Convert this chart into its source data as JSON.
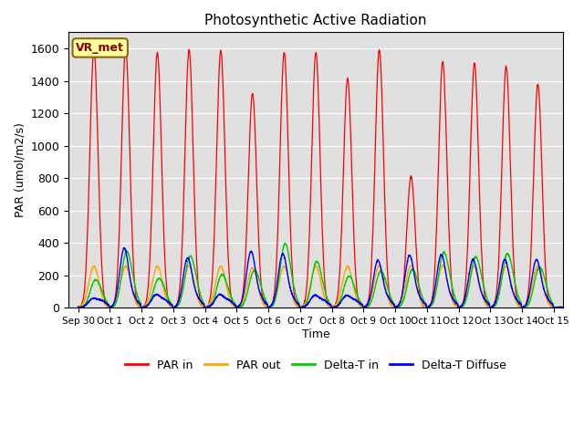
{
  "title": "Photosynthetic Active Radiation",
  "ylabel": "PAR (umol/m2/s)",
  "xlabel": "Time",
  "watermark": "VR_met",
  "legend_labels": [
    "PAR in",
    "PAR out",
    "Delta-T in",
    "Delta-T Diffuse"
  ],
  "legend_colors": [
    "#ff0000",
    "#ffa500",
    "#00cc00",
    "#0000ff"
  ],
  "xlim_start": -0.3,
  "xlim_end": 15.3,
  "ylim": [
    0,
    1700
  ],
  "yticks": [
    0,
    200,
    400,
    600,
    800,
    1000,
    1200,
    1400,
    1600
  ],
  "xtick_labels": [
    "Sep 30",
    "Oct 1",
    "Oct 2",
    "Oct 3",
    "Oct 4",
    "Oct 5",
    "Oct 6",
    "Oct 7",
    "Oct 8",
    "Oct 9",
    "Oct 10",
    "Oct 11",
    "Oct 12",
    "Oct 13",
    "Oct 14",
    "Oct 15"
  ],
  "background_color": "#e0e0e0",
  "par_in_peaks": [
    1590,
    1600,
    1575,
    1590,
    1585,
    1320,
    1575,
    1575,
    1415,
    1590,
    810,
    1520,
    1510,
    1490,
    1380,
    0
  ],
  "par_out_peaks": [
    255,
    255,
    255,
    260,
    255,
    245,
    255,
    255,
    255,
    260,
    260,
    260,
    255,
    255,
    255,
    0
  ],
  "delta_t_in_peaks": [
    130,
    290,
    140,
    260,
    165,
    165,
    340,
    250,
    155,
    175,
    185,
    285,
    255,
    270,
    185,
    0
  ],
  "delta_t_in_tails": [
    80,
    120,
    80,
    120,
    80,
    120,
    120,
    80,
    80,
    100,
    100,
    120,
    120,
    130,
    120,
    0
  ],
  "delta_t_diffuse_peaks": [
    50,
    360,
    75,
    300,
    75,
    340,
    325,
    70,
    70,
    285,
    315,
    320,
    290,
    290,
    290,
    0
  ],
  "delta_t_diffuse_tails": [
    40,
    50,
    40,
    50,
    40,
    50,
    50,
    40,
    40,
    50,
    50,
    50,
    50,
    50,
    50,
    0
  ]
}
